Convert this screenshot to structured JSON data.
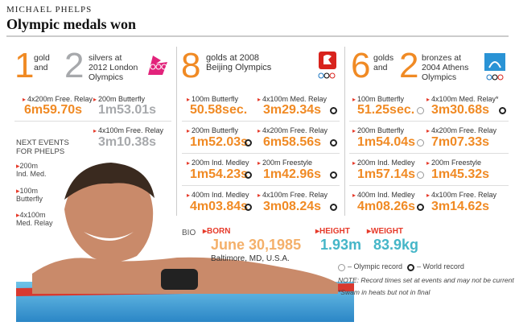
{
  "header": {
    "kicker": "MICHAEL PHELPS",
    "title": "Olympic medals won"
  },
  "london": {
    "gold_count": "1",
    "gold_word": "gold",
    "and": "and",
    "silver_count": "2",
    "silver_text": [
      "silvers at",
      "2012 London",
      "Olympics"
    ],
    "events": [
      {
        "label": "4x200m Free. Relay",
        "time": "6m59.70s"
      },
      {
        "label": "200m Butterfly",
        "time": "1m53.01s"
      },
      {
        "label": "4x100m Free. Relay",
        "time": "3m10.38s"
      }
    ],
    "next_events_title": [
      "NEXT EVENTS",
      "FOR PHELPS"
    ],
    "next_events": [
      "200m",
      "Ind. Med.",
      "100m",
      "Butterfly",
      "4x100m",
      "Med. Relay"
    ]
  },
  "beijing": {
    "gold_count": "8",
    "gold_text": [
      "golds at 2008",
      "Beijing Olympics"
    ],
    "events": [
      {
        "label": "100m Butterfly",
        "time": "50.58sec.",
        "wr": false,
        "or": true
      },
      {
        "label": "4x100m Med. Relay",
        "time": "3m29.34s",
        "wr": true
      },
      {
        "label": "200m Butterfly",
        "time": "1m52.03s",
        "wr": true
      },
      {
        "label": "4x200m Free. Relay",
        "time": "6m58.56s",
        "wr": true
      },
      {
        "label": "200m Ind. Medley",
        "time": "1m54.23s",
        "wr": true
      },
      {
        "label": "200m Freestyle",
        "time": "1m42.96s",
        "wr": true
      },
      {
        "label": "400m Ind. Medley",
        "time": "4m03.84s",
        "wr": true
      },
      {
        "label": "4x100m Free. Relay",
        "time": "3m08.24s",
        "wr": true
      }
    ]
  },
  "athens": {
    "gold_count": "6",
    "gold_word": "golds",
    "and": "and",
    "bronze_count": "2",
    "bronze_text": [
      "bronzes at",
      "2004 Athens",
      "Olympics"
    ],
    "events": [
      {
        "label": "100m Butterfly",
        "time": "51.25sec.",
        "or": true
      },
      {
        "label": "4x100m Med. Relay*",
        "time": "3m30.68s",
        "wr": true
      },
      {
        "label": "200m Butterfly",
        "time": "1m54.04s",
        "or": true
      },
      {
        "label": "4x200m Free. Relay",
        "time": "7m07.33s"
      },
      {
        "label": "200m Ind. Medley",
        "time": "1m57.14s",
        "or": true
      },
      {
        "label": "200m Freestyle",
        "time": "1m45.32s"
      },
      {
        "label": "400m Ind. Medley",
        "time": "4m08.26s",
        "wr": true
      },
      {
        "label": "4x100m Free. Relay",
        "time": "3m14.62s"
      }
    ]
  },
  "bio": {
    "label": "BIO",
    "born_label": "BORN",
    "born_date": "June 30,1985",
    "born_place": "Baltimore, MD, U.S.A.",
    "height_label": "HEIGHT",
    "height": "1.93m",
    "weight_label": "WEIGHT",
    "weight": "83.9kg"
  },
  "legend": {
    "or": "– Olympic record",
    "wr": "– World record",
    "note": "NOTE: Record times set at events and may not be current",
    "footnote": "*Swam in heats but not in final"
  },
  "colors": {
    "orange": "#f08a24",
    "grey": "#a7a9ac",
    "red": "#e63a2a",
    "teal": "#45b6c8"
  }
}
